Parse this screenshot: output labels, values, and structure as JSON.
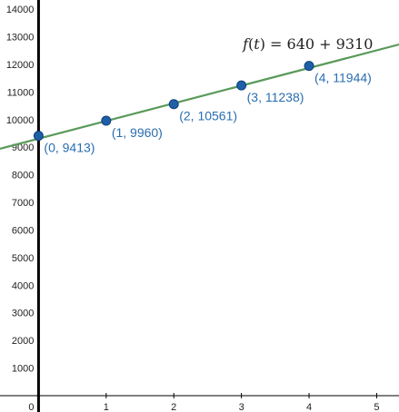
{
  "chart_data": {
    "type": "scatter",
    "formula": {
      "lhs_name": "f",
      "lhs_arg": "t",
      "rhs": "= 640 + 9310"
    },
    "xlim": [
      -0.57,
      5.33
    ],
    "ylim": [
      0,
      14300
    ],
    "x_ticks": [
      0,
      1,
      2,
      3,
      4,
      5
    ],
    "x_tick_labels": [
      "0",
      "1",
      "2",
      "3",
      "4",
      "5"
    ],
    "y_ticks": [
      1000,
      2000,
      3000,
      4000,
      5000,
      6000,
      7000,
      8000,
      9000,
      10000,
      11000,
      12000,
      13000,
      14000
    ],
    "y_tick_labels": [
      "1000",
      "2000",
      "3000",
      "4000",
      "5000",
      "6000",
      "7000",
      "8000",
      "9000",
      "10000",
      "11000",
      "12000",
      "13000",
      "14000"
    ],
    "grid": false,
    "line": {
      "intercept": 9310,
      "slope": 640,
      "color": "#5a9a5a"
    },
    "points": [
      {
        "x": 0,
        "y": 9413,
        "label": "(0, 9413)"
      },
      {
        "x": 1,
        "y": 9960,
        "label": "(1, 9960)"
      },
      {
        "x": 2,
        "y": 10561,
        "label": "(2, 10561)"
      },
      {
        "x": 3,
        "y": 11238,
        "label": "(3, 11238)"
      },
      {
        "x": 4,
        "y": 11944,
        "label": "(4, 11944)"
      }
    ],
    "point_color": "#1f5fa8",
    "label_color": "#2a6db0"
  }
}
